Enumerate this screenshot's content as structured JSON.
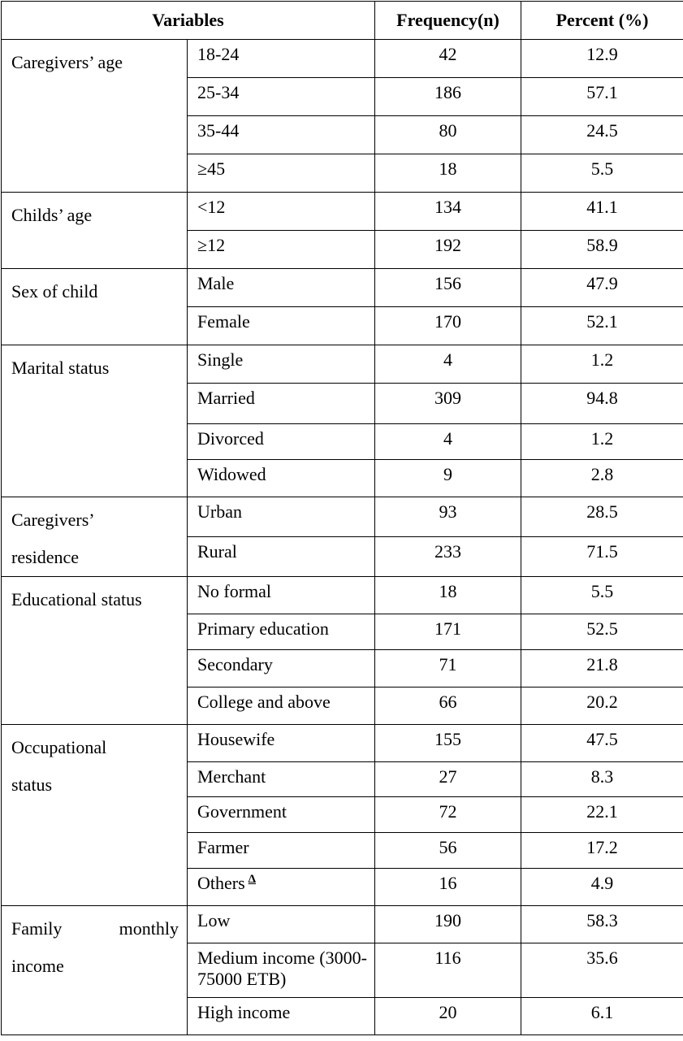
{
  "header": {
    "variables": "Variables",
    "frequency": "Frequency(n)",
    "percent": "Percent (%)"
  },
  "groups": [
    {
      "label": [
        "Caregivers’ age"
      ],
      "rows": [
        {
          "category": "18-24",
          "n": "42",
          "pct": "12.9"
        },
        {
          "category": "25-34",
          "n": "186",
          "pct": "57.1"
        },
        {
          "category": "35-44",
          "n": "80",
          "pct": "24.5"
        },
        {
          "category": "≥45",
          "n": "18",
          "pct": "5.5"
        }
      ]
    },
    {
      "label": [
        "Childs’ age"
      ],
      "rows": [
        {
          "category": "<12",
          "n": "134",
          "pct": "41.1"
        },
        {
          "category": "≥12",
          "n": "192",
          "pct": "58.9"
        }
      ]
    },
    {
      "label": [
        "Sex of child"
      ],
      "rows": [
        {
          "category": "Male",
          "n": "156",
          "pct": "47.9"
        },
        {
          "category": "Female",
          "n": "170",
          "pct": "52.1"
        }
      ]
    },
    {
      "label": [
        "Marital status"
      ],
      "rows": [
        {
          "category": "Single",
          "n": "4",
          "pct": "1.2"
        },
        {
          "category": "Married",
          "n": "309",
          "pct": "94.8"
        },
        {
          "category": "Divorced",
          "n": "4",
          "pct": "1.2"
        },
        {
          "category": "Widowed",
          "n": "9",
          "pct": "2.8"
        }
      ]
    },
    {
      "label": [
        "Caregivers’",
        "residence"
      ],
      "rows": [
        {
          "category": "Urban",
          "n": "93",
          "pct": "28.5"
        },
        {
          "category": "Rural",
          "n": "233",
          "pct": "71.5"
        }
      ]
    },
    {
      "label": [
        "Educational status"
      ],
      "rows": [
        {
          "category": "No formal",
          "n": "18",
          "pct": "5.5"
        },
        {
          "category": "Primary education",
          "n": "171",
          "pct": "52.5"
        },
        {
          "category": "Secondary",
          "n": "71",
          "pct": "21.8"
        },
        {
          "category": "College and above",
          "n": "66",
          "pct": "20.2"
        }
      ]
    },
    {
      "label": [
        "Occupational",
        "status"
      ],
      "rows": [
        {
          "category": "Housewife",
          "n": "155",
          "pct": "47.5"
        },
        {
          "category": "Merchant",
          "n": "27",
          "pct": "8.3"
        },
        {
          "category": "Government",
          "n": "72",
          "pct": "22.1"
        },
        {
          "category": "Farmer",
          "n": "56",
          "pct": "17.2"
        },
        {
          "category": "Others",
          "mark": "Δ",
          "n": "16",
          "pct": "4.9"
        }
      ]
    },
    {
      "label": [
        "Family monthly",
        "income"
      ],
      "justify": true,
      "rows": [
        {
          "category": "Low",
          "n": "190",
          "pct": "58.3"
        },
        {
          "category": "Medium income (3000-75000 ETB)",
          "n": "116",
          "pct": "35.6",
          "tall": true
        },
        {
          "category": "High income",
          "n": "20",
          "pct": "6.1"
        }
      ]
    }
  ]
}
